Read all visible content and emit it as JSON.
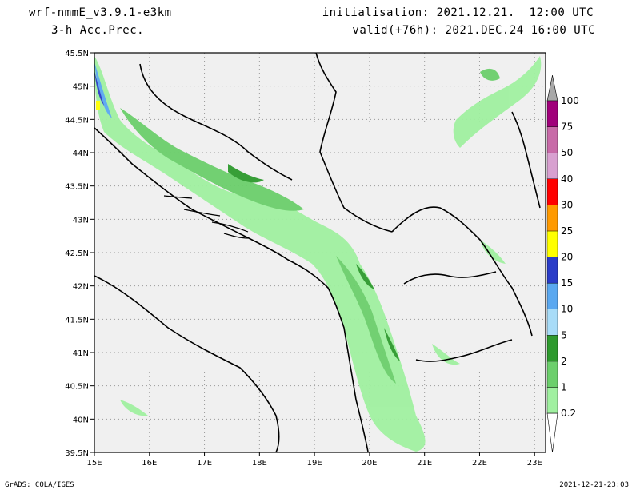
{
  "header": {
    "model": "wrf-nmmE_v3.9.1-e3km",
    "field": "3-h Acc.Prec.",
    "init": "initialisation: 2021.12.21.  12:00 UTC",
    "valid": "valid(+76h): 2021.DEC.24 16:00 UTC"
  },
  "footer": {
    "credit": "GrADS: COLA/IGES",
    "timestamp": "2021-12-21-23:03"
  },
  "axes": {
    "lat_labels": [
      "45.5N",
      "45N",
      "44.5N",
      "44N",
      "43.5N",
      "43N",
      "42.5N",
      "42N",
      "41.5N",
      "41N",
      "40.5N",
      "40N",
      "39.5N"
    ],
    "lat_values": [
      45.5,
      45,
      44.5,
      44,
      43.5,
      43,
      42.5,
      42,
      41.5,
      41,
      40.5,
      40,
      39.5
    ],
    "lon_labels": [
      "15E",
      "16E",
      "17E",
      "18E",
      "19E",
      "20E",
      "21E",
      "22E",
      "23E"
    ],
    "lon_values": [
      15,
      16,
      17,
      18,
      19,
      20,
      21,
      22,
      23
    ],
    "lat_range": [
      39.5,
      45.5
    ],
    "lon_range": [
      15,
      23.2
    ],
    "grid": "dotted"
  },
  "colorbar": {
    "labels": [
      "0.2",
      "1",
      "2",
      "5",
      "10",
      "15",
      "20",
      "25",
      "30",
      "40",
      "50",
      "75",
      "100"
    ],
    "colors": [
      "#a0f0a0",
      "#6ccf6c",
      "#2e9a2e",
      "#a8dcf8",
      "#5aa8f0",
      "#2a3cc8",
      "#ffff00",
      "#ff9a00",
      "#ff0000",
      "#d8a0d0",
      "#c86aa8",
      "#a0007a",
      "#a8a8a8"
    ],
    "above_color": "#a8a8a8"
  },
  "colors": {
    "land": "#f0f0f0",
    "border": "#000000"
  }
}
